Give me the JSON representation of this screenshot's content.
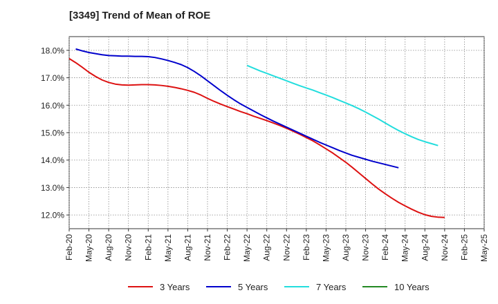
{
  "title": "[3349]  Trend of Mean of ROE",
  "chart_data": {
    "type": "line",
    "title": "[3349]  Trend of Mean of ROE",
    "xlabel": "",
    "ylabel": "",
    "x_ticks": [
      "Feb-20",
      "May-20",
      "Aug-20",
      "Nov-20",
      "Feb-21",
      "May-21",
      "Aug-21",
      "Nov-21",
      "Feb-22",
      "May-22",
      "Aug-22",
      "Nov-22",
      "Feb-23",
      "May-23",
      "Aug-23",
      "Nov-23",
      "Feb-24",
      "May-24",
      "Aug-24",
      "Nov-24",
      "Feb-25",
      "May-25"
    ],
    "y_ticks": [
      "12.0%",
      "13.0%",
      "14.0%",
      "15.0%",
      "16.0%",
      "17.0%",
      "18.0%"
    ],
    "y_tick_values": [
      12,
      13,
      14,
      15,
      16,
      17,
      18
    ],
    "ylim": [
      11.5,
      18.5
    ],
    "grid": true,
    "legend_position": "bottom",
    "series": [
      {
        "name": "3 Years",
        "color": "#dd1111",
        "start_index": 0,
        "values": [
          17.7,
          17.55,
          17.38,
          17.2,
          17.05,
          16.92,
          16.83,
          16.77,
          16.74,
          16.73,
          16.74,
          16.75,
          16.75,
          16.74,
          16.72,
          16.69,
          16.65,
          16.6,
          16.54,
          16.47,
          16.37,
          16.25,
          16.14,
          16.04,
          15.95,
          15.86,
          15.77,
          15.69,
          15.6,
          15.52,
          15.44,
          15.35,
          15.26,
          15.16,
          15.05,
          14.94,
          14.82,
          14.7,
          14.56,
          14.41,
          14.26,
          14.09,
          13.92,
          13.73,
          13.53,
          13.33,
          13.13,
          12.94,
          12.77,
          12.61,
          12.46,
          12.33,
          12.21,
          12.1,
          12.01,
          11.95,
          11.92,
          11.91
        ]
      },
      {
        "name": "5 Years",
        "color": "#0000cc",
        "start_index": 1,
        "values": [
          18.05,
          17.98,
          17.92,
          17.88,
          17.84,
          17.81,
          17.8,
          17.79,
          17.79,
          17.78,
          17.78,
          17.77,
          17.74,
          17.69,
          17.63,
          17.56,
          17.48,
          17.37,
          17.23,
          17.07,
          16.89,
          16.71,
          16.53,
          16.36,
          16.2,
          16.05,
          15.92,
          15.79,
          15.66,
          15.54,
          15.42,
          15.31,
          15.2,
          15.09,
          14.98,
          14.87,
          14.76,
          14.65,
          14.55,
          14.45,
          14.35,
          14.26,
          14.17,
          14.1,
          14.03,
          13.96,
          13.9,
          13.84,
          13.78,
          13.72
        ]
      },
      {
        "name": "7 Years",
        "color": "#22dddd",
        "start_index": 27,
        "values": [
          17.45,
          17.35,
          17.25,
          17.16,
          17.07,
          16.98,
          16.89,
          16.8,
          16.71,
          16.63,
          16.55,
          16.46,
          16.37,
          16.28,
          16.18,
          16.08,
          15.98,
          15.87,
          15.75,
          15.62,
          15.49,
          15.35,
          15.21,
          15.08,
          14.96,
          14.85,
          14.75,
          14.67,
          14.6,
          14.53
        ]
      },
      {
        "name": "10 Years",
        "color": "#228822",
        "start_index": 0,
        "values": []
      }
    ]
  }
}
